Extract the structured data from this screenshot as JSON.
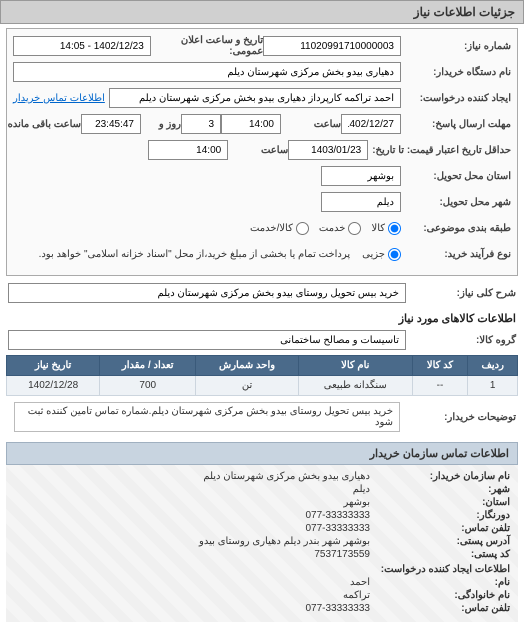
{
  "header": {
    "title": "جزئیات اطلاعات نیاز"
  },
  "fields": {
    "need_no_label": "شماره نیاز:",
    "need_no": "11020991710000003",
    "ann_datetime_label": "تاریخ و ساعت اعلان عمومی:",
    "ann_datetime": "1402/12/23 - 14:05",
    "buyer_org_label": "نام دستگاه خریدار:",
    "buyer_org": "دهیاری بیدو بخش مرکزی شهرستان دیلم",
    "creator_label": "ایجاد کننده درخواست:",
    "creator": "احمد تراکمه کارپرداز دهیاری بیدو بخش مرکزی شهرستان دیلم",
    "contact_link": "اطلاعات تماس خریدار",
    "reply_deadline_label": "مهلت ارسال پاسخ:",
    "reply_to_date_label": "تا تاریخ:",
    "reply_date": "1402/12/27",
    "time_label": "ساعت",
    "reply_time": "14:00",
    "day_label": "روز و",
    "days_left": "3",
    "remain_label": "ساعت باقی مانده",
    "remain_time": "23:45:47",
    "valid_label": "حداقل تاریخ اعتبار قیمت: تا تاریخ:",
    "valid_date": "1403/01/23",
    "valid_time": "14:00",
    "deliver_state_label": "استان محل تحویل:",
    "deliver_state": "بوشهر",
    "deliver_city_label": "شهر محل تحویل:",
    "deliver_city": "دیلم",
    "group_label": "طبقه بندی موضوعی:",
    "radio_kala": "کالا",
    "radio_service": "خدمت",
    "radio_both": "کالا/خدمت",
    "process_label": "نوع فرآیند خرید:",
    "radio_partial": "جزیی",
    "process_note": "پرداخت تمام یا بخشی از مبلغ خرید،از محل \"اسناد خزانه اسلامی\" خواهد بود.",
    "need_title_label": "شرح کلی نیاز:",
    "need_title": "خرید بیس تحویل روستای بیدو بخش مرکزی شهرستان دیلم",
    "items_header": "اطلاعات کالاهای مورد نیاز",
    "item_group_label": "گروه کالا:",
    "item_group": "تاسیسات و مصالح ساختمانی"
  },
  "table": {
    "columns": [
      "ردیف",
      "کد کالا",
      "نام کالا",
      "واحد شمارش",
      "تعداد / مقدار",
      "تاریخ نیاز"
    ],
    "rows": [
      [
        "1",
        "--",
        "سنگدانه طبیعی",
        "تن",
        "700",
        "1402/12/28"
      ]
    ],
    "header_bg": "#4a6a8a",
    "header_fg": "#ffffff",
    "cell_bg": "#eef2f6"
  },
  "buyer_note_label": "توضیحات خریدار:",
  "buyer_note": "خرید بیس تحویل روستای بیدو بخش مرکزی شهرستان دیلم.شماره تماس تامین کننده ثبت شود",
  "contact": {
    "header": "اطلاعات تماس سازمان خریدار",
    "org_label": "نام سازمان خریدار:",
    "org": "دهیاری بیدو بخش مرکزی شهرستان دیلم",
    "city_label": "شهر:",
    "city": "دیلم",
    "state_label": "استان:",
    "state": "بوشهر",
    "fax_label": "دورنگار:",
    "fax": "077-33333333",
    "phone_label": "تلفن تماس:",
    "phone": "077-33333333",
    "address_label": "آدرس پستی:",
    "address": "بوشهر شهر بندر دیلم دهیاری روستای بیدو",
    "postal_label": "کد پستی:",
    "postal": "7537173559",
    "req_creator_header": "اطلاعات ایجاد کننده درخواست:",
    "name_label": "نام:",
    "name": "احمد",
    "family_label": "نام خانوادگی:",
    "family": "تراکمه",
    "req_phone_label": "تلفن تماس:",
    "req_phone": "077-33333333"
  }
}
